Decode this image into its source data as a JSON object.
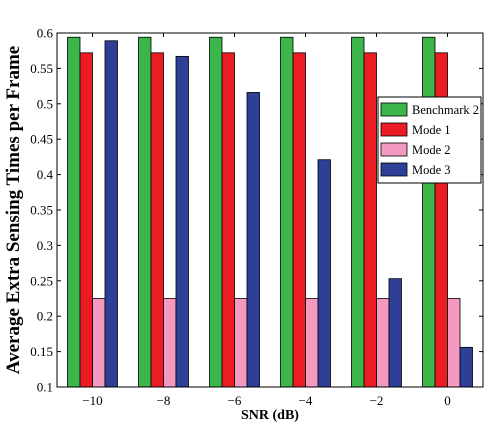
{
  "chart_data": {
    "type": "bar",
    "xlabel": "SNR (dB)",
    "ylabel": "Average Extra Sensing Times per Frame",
    "categories": [
      "−10",
      "−8",
      "−6",
      "−4",
      "−2",
      "0"
    ],
    "ylim": [
      0.1,
      0.6
    ],
    "yticks": [
      "0.1",
      "0.15",
      "0.2",
      "0.25",
      "0.3",
      "0.35",
      "0.4",
      "0.45",
      "0.5",
      "0.55",
      "0.6"
    ],
    "grid": false,
    "legend_position": "right",
    "series": [
      {
        "name": "Benchmark 2",
        "color": "#3cb54a",
        "values": [
          0.594,
          0.594,
          0.594,
          0.594,
          0.594,
          0.594
        ]
      },
      {
        "name": "Mode 1",
        "color": "#ec1c24",
        "values": [
          0.572,
          0.572,
          0.572,
          0.572,
          0.572,
          0.572
        ]
      },
      {
        "name": "Mode 2",
        "color": "#f49ac1",
        "values": [
          0.225,
          0.225,
          0.225,
          0.225,
          0.225,
          0.225
        ]
      },
      {
        "name": "Mode 3",
        "color": "#2e3f98",
        "values": [
          0.589,
          0.567,
          0.516,
          0.421,
          0.253,
          0.156
        ]
      }
    ]
  }
}
